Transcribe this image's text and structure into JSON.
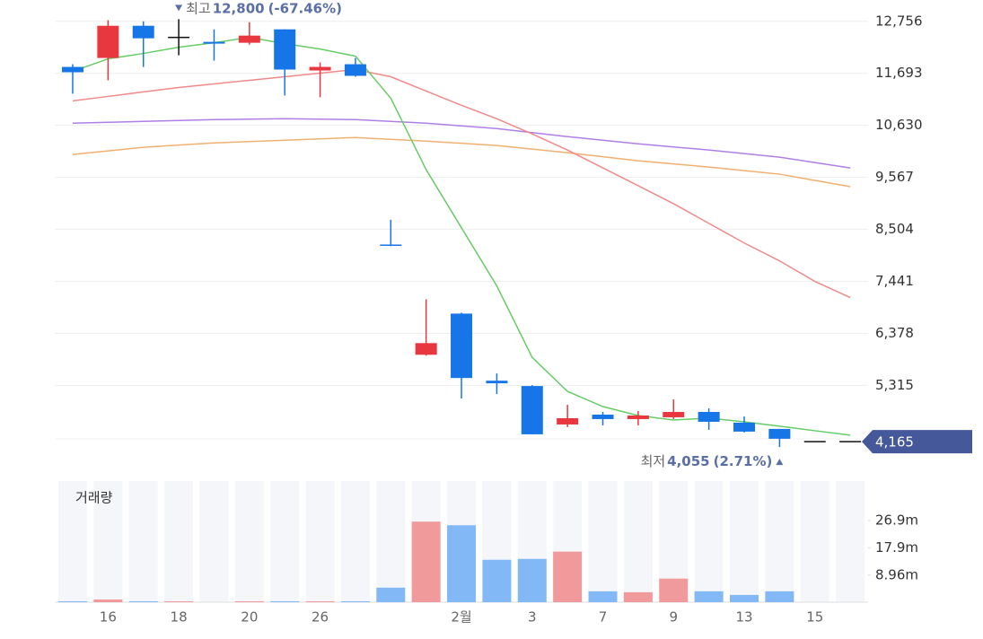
{
  "chart_data": [
    {
      "type": "candlestick",
      "categories": [
        null,
        "16",
        null,
        "18",
        null,
        "20",
        null,
        "26",
        null,
        null,
        null,
        "2월",
        null,
        "3",
        null,
        "7",
        null,
        "9",
        null,
        "13",
        null,
        "15",
        null
      ],
      "open": [
        11824,
        12007,
        12665,
        12427,
        12336,
        12318,
        12592,
        11751,
        11879,
        8180,
        5941,
        6782,
        5411,
        5302,
        4516,
        4717,
        4626,
        4663,
        4772,
        4553,
        4425,
        4165,
        4165
      ],
      "high": [
        11879,
        12780,
        12756,
        12800,
        12592,
        12738,
        12592,
        11916,
        12007,
        8700,
        7074,
        6800,
        5558,
        5320,
        4918,
        4772,
        4790,
        5028,
        4845,
        4681,
        4425,
        4165,
        4165
      ],
      "low": [
        11276,
        11550,
        11824,
        12062,
        11952,
        12281,
        11240,
        11203,
        11623,
        8160,
        5923,
        5046,
        5138,
        4315,
        4462,
        4498,
        4498,
        4626,
        4407,
        4352,
        4055,
        4165,
        4165
      ],
      "close": [
        11715,
        12665,
        12409,
        12427,
        12300,
        12464,
        11770,
        11824,
        11642,
        8160,
        6179,
        5466,
        5357,
        4315,
        4644,
        4626,
        4699,
        4772,
        4571,
        4370,
        4224,
        4165,
        4165
      ],
      "up_color": "#e8373e",
      "down_color": "#1676e8",
      "flat_color": "#111111",
      "ylim": [
        4020,
        13100
      ],
      "yticks": [
        {
          "value": 5315,
          "label": "5,315"
        },
        {
          "value": 6378,
          "label": "6,378"
        },
        {
          "value": 7441,
          "label": "7,441"
        },
        {
          "value": 8504,
          "label": "8,504"
        },
        {
          "value": 9567,
          "label": "9,567"
        },
        {
          "value": 10630,
          "label": "10,630"
        },
        {
          "value": 11693,
          "label": "11,693"
        },
        {
          "value": 12756,
          "label": "12,756"
        }
      ],
      "grid": true,
      "series": [
        {
          "color": "#b07fe6",
          "values": [
            10673,
            10692,
            10710,
            10728,
            10747,
            10756,
            10765,
            10756,
            10747,
            10710,
            10673,
            10618,
            10564,
            10482,
            10399,
            10326,
            10253,
            10189,
            10125,
            10052,
            9979,
            9870,
            9760
          ]
        },
        {
          "color": "#f0b070",
          "values": [
            10034,
            10107,
            10180,
            10226,
            10271,
            10299,
            10326,
            10354,
            10381,
            10345,
            10308,
            10263,
            10217,
            10144,
            10071,
            9989,
            9906,
            9842,
            9778,
            9705,
            9632,
            9504,
            9376
          ]
        },
        {
          "color": "#f08a8a",
          "values": [
            11130,
            11221,
            11313,
            11404,
            11477,
            11550,
            11623,
            11697,
            11770,
            11623,
            11331,
            11039,
            10765,
            10454,
            10125,
            9760,
            9395,
            9029,
            8627,
            8225,
            7860,
            7440,
            7110
          ]
        },
        {
          "color": "#66cc66",
          "values": [
            11733,
            11989,
            12099,
            12226,
            12318,
            12427,
            12300,
            12190,
            12044,
            11185,
            9724,
            8536,
            7348,
            5887,
            5192,
            4882,
            4699,
            4608,
            4645,
            4571,
            4480,
            4388,
            4297
          ]
        }
      ],
      "high_annotation": {
        "text": "최고",
        "price": {
          "value": 12800,
          "label": "12,800"
        },
        "change": {
          "value": -67.46,
          "label": "(-67.46%)"
        }
      },
      "low_annotation": {
        "text": "최저",
        "price": {
          "value": 4055,
          "label": "4,055"
        },
        "change": {
          "value": 2.71,
          "label": "(2.71%)"
        }
      },
      "current_price": {
        "value": 4165,
        "label": "4,165"
      }
    },
    {
      "type": "bar",
      "title": "거래량",
      "values": [
        0.3,
        0.9,
        0.3,
        0.3,
        0,
        0.3,
        0.3,
        0.3,
        0.3,
        4.8,
        26.6,
        25.4,
        14.0,
        14.3,
        16.7,
        3.6,
        3.3,
        7.8,
        3.6,
        2.4,
        3.6,
        0,
        0
      ],
      "up_color": "#f09a9c",
      "down_color": "#82b8f5",
      "ylim": [
        0,
        40
      ],
      "yticks": [
        {
          "value": 8.96,
          "label": "8.96m"
        },
        {
          "value": 17.9,
          "label": "17.9m"
        },
        {
          "value": 26.9,
          "label": "26.9m"
        }
      ]
    }
  ]
}
